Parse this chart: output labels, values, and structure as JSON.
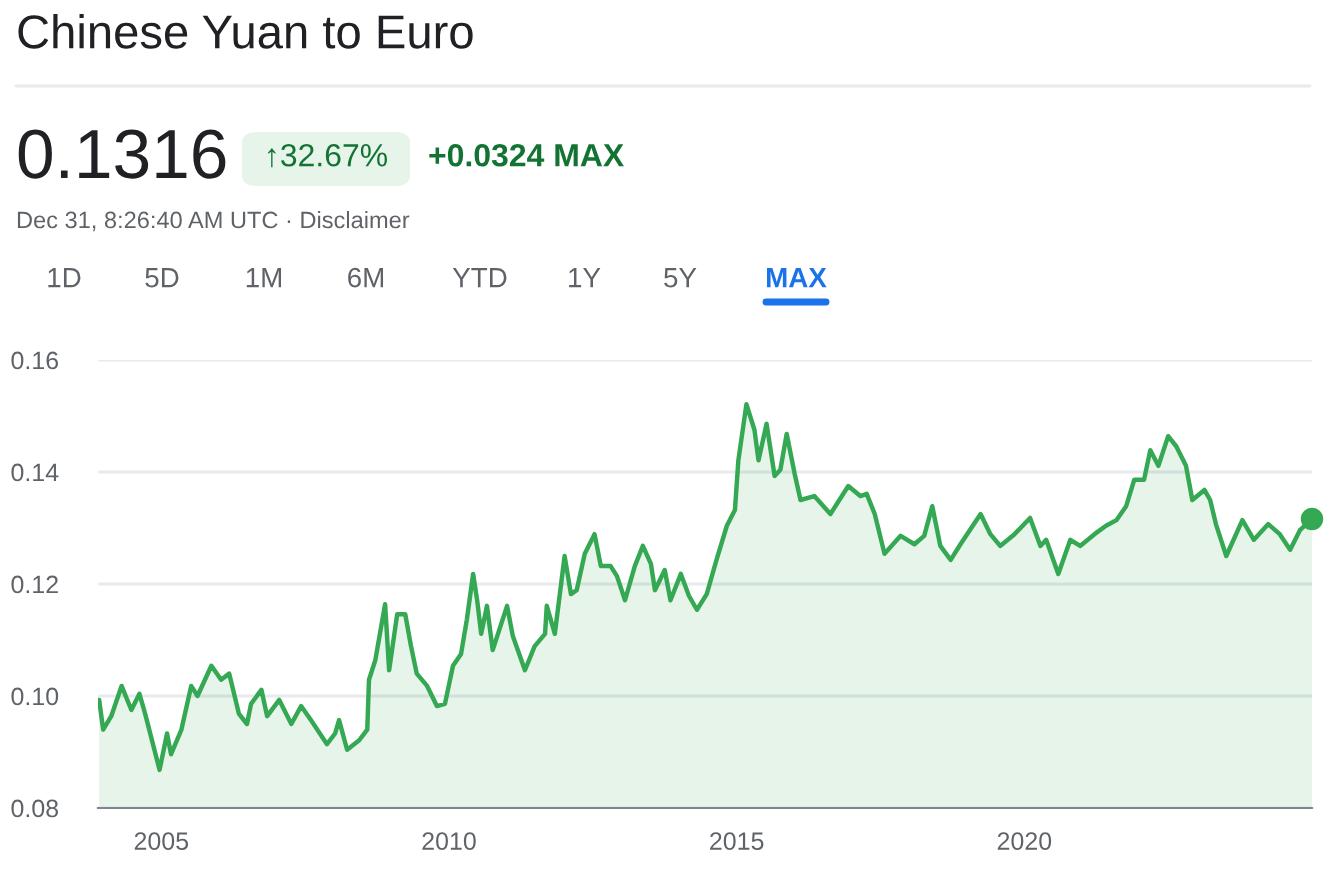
{
  "chart_data": {
    "type": "area",
    "title": "Chinese Yuan to Euro",
    "annotations": [
      "0.1316",
      "↑32.67%",
      "+0.0324 MAX",
      "Dec 31, 8:26:40 AM UTC · Disclaimer",
      "1D",
      "5D",
      "1M",
      "6M",
      "YTD",
      "1Y",
      "5Y",
      "MAX"
    ],
    "series": [
      {
        "color": "#34a853",
        "x": [
          2003.92,
          2003.99,
          2004.13,
          2004.31,
          2004.48,
          2004.62,
          2004.72,
          2004.97,
          2005.1,
          2005.17,
          2005.35,
          2005.52,
          2005.63,
          2005.87,
          2006.04,
          2006.18,
          2006.35,
          2006.49,
          2006.56,
          2006.74,
          2006.84,
          2007.05,
          2007.26,
          2007.43,
          2007.6,
          2007.88,
          2008.02,
          2008.09,
          2008.23,
          2008.44,
          2008.58,
          2008.61,
          2008.72,
          2008.89,
          2008.96,
          2009.1,
          2009.24,
          2009.34,
          2009.44,
          2009.62,
          2009.79,
          2009.93,
          2010.07,
          2010.21,
          2010.31,
          2010.42,
          2010.49,
          2010.56,
          2010.66,
          2010.76,
          2011.01,
          2011.11,
          2011.32,
          2011.49,
          2011.67,
          2011.7,
          2011.84,
          2012.01,
          2012.12,
          2012.22,
          2012.36,
          2012.53,
          2012.64,
          2012.81,
          2012.92,
          2013.06,
          2013.23,
          2013.37,
          2013.51,
          2013.58,
          2013.75,
          2013.85,
          2014.03,
          2014.17,
          2014.31,
          2014.48,
          2014.65,
          2014.83,
          2014.97,
          2015.03,
          2015.17,
          2015.31,
          2015.38,
          2015.52,
          2015.66,
          2015.76,
          2015.87,
          2016.01,
          2016.11,
          2016.35,
          2016.63,
          2016.94,
          2017.15,
          2017.26,
          2017.4,
          2017.57,
          2017.85,
          2018.09,
          2018.26,
          2018.4,
          2018.54,
          2018.72,
          2018.89,
          2019.24,
          2019.41,
          2019.58,
          2019.83,
          2020.1,
          2020.28,
          2020.38,
          2020.59,
          2020.8,
          2020.97,
          2021.22,
          2021.42,
          2021.6,
          2021.77,
          2021.91,
          2022.08,
          2022.19,
          2022.33,
          2022.5,
          2022.64,
          2022.81,
          2022.92,
          2023.13,
          2023.23,
          2023.33,
          2023.51,
          2023.79,
          2023.99,
          2024.24,
          2024.44,
          2024.62,
          2024.79,
          2025.0
        ],
        "values": [
          0.0993,
          0.094,
          0.0964,
          0.1018,
          0.0975,
          0.1004,
          0.0968,
          0.0868,
          0.0933,
          0.0896,
          0.094,
          0.1018,
          0.1,
          0.1054,
          0.1029,
          0.104,
          0.0968,
          0.095,
          0.0986,
          0.1011,
          0.0964,
          0.0993,
          0.095,
          0.0982,
          0.0957,
          0.0914,
          0.0933,
          0.0957,
          0.0904,
          0.0921,
          0.094,
          0.1029,
          0.1064,
          0.1164,
          0.1046,
          0.1146,
          0.1146,
          0.1089,
          0.104,
          0.1018,
          0.0982,
          0.0986,
          0.1054,
          0.1075,
          0.1136,
          0.1218,
          0.1171,
          0.1111,
          0.1161,
          0.1082,
          0.1161,
          0.1107,
          0.1046,
          0.1089,
          0.1111,
          0.1161,
          0.1111,
          0.125,
          0.1182,
          0.1189,
          0.1254,
          0.1289,
          0.1232,
          0.1232,
          0.1214,
          0.1171,
          0.1232,
          0.1268,
          0.1236,
          0.1189,
          0.1225,
          0.1171,
          0.1218,
          0.1179,
          0.1154,
          0.1182,
          0.1243,
          0.1304,
          0.1332,
          0.1421,
          0.1521,
          0.1475,
          0.1421,
          0.1486,
          0.1393,
          0.1404,
          0.1468,
          0.1396,
          0.135,
          0.1357,
          0.1325,
          0.1375,
          0.1357,
          0.1361,
          0.1325,
          0.1254,
          0.1286,
          0.1271,
          0.1286,
          0.1339,
          0.1268,
          0.1243,
          0.1271,
          0.1325,
          0.1289,
          0.1268,
          0.1289,
          0.1318,
          0.1268,
          0.1279,
          0.1218,
          0.1279,
          0.1268,
          0.1289,
          0.1304,
          0.1314,
          0.1339,
          0.1386,
          0.1386,
          0.1439,
          0.1411,
          0.1464,
          0.1446,
          0.1411,
          0.135,
          0.1368,
          0.135,
          0.1307,
          0.125,
          0.1314,
          0.1279,
          0.1307,
          0.1289,
          0.1261,
          0.1296,
          0.1316
        ]
      },
      {
        "type": "scatter",
        "color": "#34a853",
        "x": [
          2025.0
        ],
        "values": [
          0.1316
        ]
      }
    ],
    "xlim": [
      2003.9,
      2025.0
    ],
    "ylim": [
      0.08,
      0.16
    ],
    "xticks": [
      2005,
      2010,
      2015,
      2020
    ],
    "yticks": [
      {
        "value": 0.08,
        "label": "0.08"
      },
      {
        "value": 0.1,
        "label": "0.10"
      },
      {
        "value": 0.12,
        "label": "0.12"
      },
      {
        "value": 0.14,
        "label": "0.14"
      },
      {
        "value": 0.16,
        "label": "0.16"
      }
    ],
    "grid": "y",
    "legend": false
  }
}
